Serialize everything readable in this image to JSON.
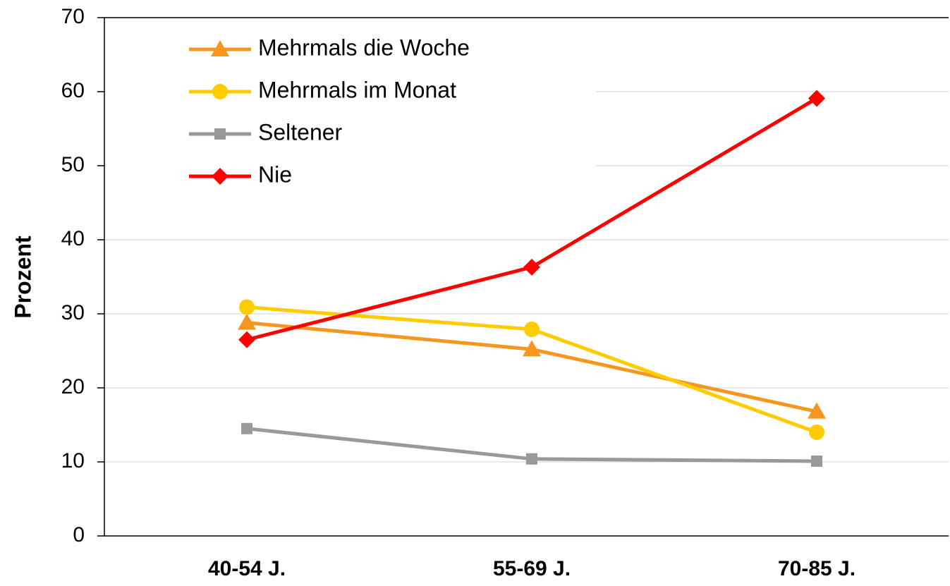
{
  "chart_data": {
    "type": "line",
    "y_label": "Prozent",
    "categories": [
      "40-54 J.",
      "55-69 J.",
      "70-85 J."
    ],
    "series": [
      {
        "name": "Mehrmals die Woche",
        "color": "#f7961e",
        "marker": "triangle",
        "values": [
          28.8,
          25.2,
          16.8
        ]
      },
      {
        "name": "Mehrmals im Monat",
        "color": "#ffcc00",
        "marker": "circle",
        "values": [
          30.9,
          27.9,
          14.0
        ]
      },
      {
        "name": "Seltener",
        "color": "#999999",
        "marker": "square",
        "values": [
          14.5,
          10.4,
          10.1
        ]
      },
      {
        "name": "Nie",
        "color": "#ff0000",
        "marker": "diamond",
        "values": [
          26.5,
          36.3,
          59.1
        ]
      }
    ],
    "ylim": [
      0,
      70
    ],
    "yticks": [
      0,
      10,
      20,
      30,
      40,
      50,
      60,
      70
    ],
    "grid": true,
    "legend": "top-left"
  }
}
